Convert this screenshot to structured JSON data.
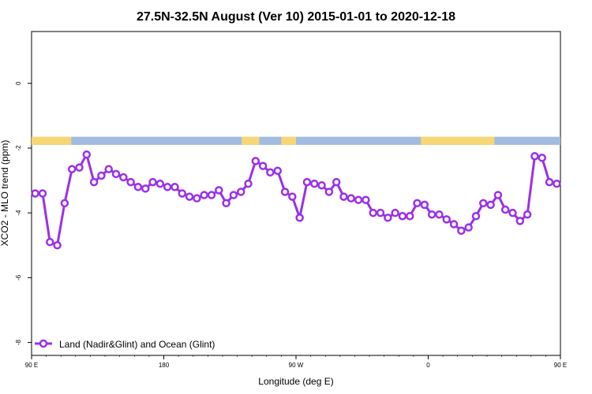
{
  "chart_data": {
    "type": "line",
    "title": "27.5N-32.5N August (Ver 10)   2015-01-01 to 2020-12-18",
    "xlabel": "Longitude (deg E)",
    "ylabel": "XCO2 - MLO trend (ppm)",
    "xlim": [
      90,
      450
    ],
    "ylim": [
      -8.4,
      1.6
    ],
    "x_ticks": [
      {
        "value": 90,
        "label": "90 E"
      },
      {
        "value": 180,
        "label": "180"
      },
      {
        "value": 270,
        "label": "90 W"
      },
      {
        "value": 360,
        "label": "0"
      },
      {
        "value": 450,
        "label": "90 E"
      },
      {
        "value": 540,
        "label": "180"
      }
    ],
    "y_ticks": [
      {
        "value": 0,
        "label": "0"
      },
      {
        "value": -2,
        "label": "-2"
      },
      {
        "value": -4,
        "label": "-4"
      },
      {
        "value": -6,
        "label": "-6"
      },
      {
        "value": -8,
        "label": "-8"
      }
    ],
    "legend": {
      "label": "Land (Nadir&Glint) and Ocean (Glint)",
      "position": "bottom-left"
    },
    "series": [
      {
        "name": "Land (Nadir&Glint) and Ocean (Glint)",
        "color": "#9b30e8",
        "x": [
          92.5,
          97.5,
          102.5,
          107.5,
          112.5,
          117.5,
          122.5,
          127.5,
          132.5,
          137.5,
          142.5,
          147.5,
          152.5,
          157.5,
          162.5,
          167.5,
          172.5,
          177.5,
          182.5,
          187.5,
          192.5,
          197.5,
          202.5,
          207.5,
          212.5,
          217.5,
          222.5,
          227.5,
          232.5,
          237.5,
          242.5,
          247.5,
          252.5,
          257.5,
          262.5,
          267.5,
          272.5,
          277.5,
          282.5,
          287.5,
          292.5,
          297.5,
          302.5,
          307.5,
          312.5,
          317.5,
          322.5,
          327.5,
          332.5,
          337.5,
          342.5,
          347.5,
          352.5,
          357.5,
          362.5,
          367.5,
          372.5,
          377.5,
          382.5,
          387.5,
          392.5,
          397.5,
          402.5,
          407.5,
          412.5,
          417.5,
          422.5,
          427.5,
          432.5,
          437.5,
          442.5,
          447.5
        ],
        "y": [
          -3.4,
          -3.4,
          -4.9,
          -5.0,
          -3.7,
          -2.65,
          -2.6,
          -2.2,
          -3.05,
          -2.85,
          -2.65,
          -2.8,
          -2.9,
          -3.05,
          -3.2,
          -3.25,
          -3.05,
          -3.1,
          -3.2,
          -3.2,
          -3.4,
          -3.5,
          -3.55,
          -3.45,
          -3.45,
          -3.3,
          -3.7,
          -3.45,
          -3.35,
          -3.1,
          -2.4,
          -2.55,
          -2.75,
          -2.7,
          -3.35,
          -3.5,
          -4.15,
          -3.05,
          -3.1,
          -3.15,
          -3.35,
          -3.05,
          -3.5,
          -3.55,
          -3.6,
          -3.6,
          -4.0,
          -4.0,
          -4.15,
          -4.0,
          -4.1,
          -4.1,
          -3.7,
          -3.75,
          -4.05,
          -4.05,
          -4.2,
          -4.35,
          -4.55,
          -4.45,
          -4.1,
          -3.7,
          -3.75,
          -3.45,
          -3.9,
          -4.0,
          -4.25,
          -4.05,
          -2.25,
          -2.3,
          -3.05,
          -3.1
        ]
      }
    ],
    "surface_strip": {
      "y_top": -1.65,
      "y_bottom": -1.9,
      "land_color": "#f7d774",
      "ocean_color": "#a3bbe0",
      "land_segments": [
        [
          90,
          117
        ],
        [
          233,
          245
        ],
        [
          260,
          270
        ],
        [
          355,
          400
        ],
        [
          400,
          405
        ],
        [
          490,
          502
        ],
        [
          540,
          552
        ]
      ]
    },
    "grid": false
  }
}
